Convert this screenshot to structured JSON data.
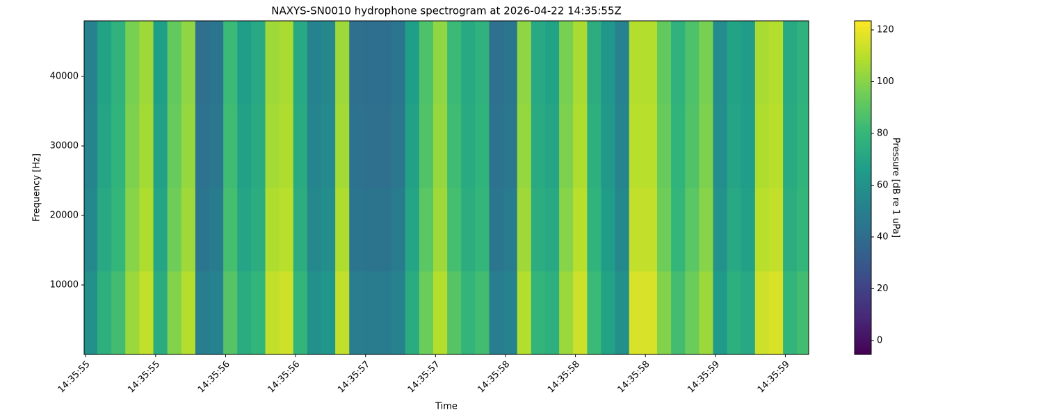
{
  "chart_data": {
    "type": "heatmap",
    "title": "NAXYS-SN0010 hydrophone spectrogram at 2026-04-22 14:35:55Z",
    "xlabel": "Time",
    "ylabel": "Frequency [Hz]",
    "colorbar_label": "Pressure [dB re 1 uPa]",
    "cmap": "viridis",
    "x": [
      55.33,
      55.42,
      55.51,
      55.6,
      55.69,
      55.78,
      55.87,
      55.96,
      56.05,
      56.14,
      56.23,
      56.32,
      56.41,
      56.5,
      56.59,
      56.68,
      56.77,
      56.86,
      56.95,
      57.04,
      57.13,
      57.22,
      57.31,
      57.4,
      57.49,
      57.58,
      57.67,
      57.76,
      57.85,
      57.94,
      58.03,
      58.12,
      58.21,
      58.3,
      58.39,
      58.48,
      58.57,
      58.66,
      58.75,
      58.84,
      58.93,
      59.02,
      59.11,
      59.2,
      59.29,
      59.38,
      59.47,
      59.56,
      59.65,
      59.74,
      59.83,
      59.92
    ],
    "y": [
      6000,
      18000,
      30000,
      42000
    ],
    "z": [
      [
        59,
        76,
        84,
        104,
        112,
        74,
        99,
        109,
        49,
        52,
        89,
        74,
        79,
        112,
        114,
        79,
        59,
        62,
        112,
        49,
        48,
        48,
        52,
        74,
        94,
        109,
        89,
        79,
        84,
        49,
        52,
        109,
        79,
        76,
        104,
        114,
        82,
        69,
        59,
        116,
        116,
        99,
        84,
        94,
        104,
        64,
        76,
        72,
        114,
        116,
        79,
        84
      ],
      [
        55,
        72,
        80,
        100,
        108,
        70,
        95,
        105,
        45,
        48,
        85,
        70,
        75,
        108,
        110,
        75,
        55,
        58,
        108,
        45,
        44,
        44,
        48,
        70,
        90,
        105,
        85,
        75,
        80,
        45,
        48,
        105,
        75,
        72,
        100,
        110,
        78,
        65,
        55,
        112,
        112,
        95,
        80,
        90,
        100,
        60,
        72,
        68,
        110,
        112,
        75,
        80
      ],
      [
        53,
        70,
        78,
        98,
        106,
        68,
        93,
        103,
        43,
        46,
        83,
        68,
        73,
        106,
        108,
        73,
        53,
        56,
        106,
        43,
        42,
        42,
        46,
        68,
        88,
        103,
        83,
        73,
        78,
        43,
        46,
        103,
        73,
        70,
        98,
        108,
        76,
        63,
        53,
        110,
        110,
        93,
        78,
        88,
        98,
        58,
        70,
        66,
        108,
        110,
        73,
        78
      ],
      [
        52,
        69,
        77,
        97,
        105,
        67,
        92,
        102,
        42,
        45,
        82,
        67,
        72,
        105,
        107,
        72,
        52,
        55,
        105,
        42,
        41,
        41,
        45,
        67,
        87,
        102,
        82,
        72,
        77,
        42,
        45,
        102,
        72,
        69,
        97,
        107,
        75,
        62,
        52,
        109,
        109,
        92,
        77,
        87,
        97,
        57,
        69,
        65,
        107,
        109,
        72,
        77
      ]
    ],
    "xlim": [
      55.29,
      59.95
    ],
    "xticks": [
      {
        "value": 55.3,
        "label": "14:35:55"
      },
      {
        "value": 55.75,
        "label": "14:35:55"
      },
      {
        "value": 56.2,
        "label": "14:35:56"
      },
      {
        "value": 56.65,
        "label": "14:35:56"
      },
      {
        "value": 57.1,
        "label": "14:35:57"
      },
      {
        "value": 57.55,
        "label": "14:35:57"
      },
      {
        "value": 58.0,
        "label": "14:35:58"
      },
      {
        "value": 58.45,
        "label": "14:35:58"
      },
      {
        "value": 58.9,
        "label": "14:35:58"
      },
      {
        "value": 59.35,
        "label": "14:35:59"
      },
      {
        "value": 59.8,
        "label": "14:35:59"
      }
    ],
    "ylim": [
      0,
      48000
    ],
    "yticks": [
      10000,
      20000,
      30000,
      40000
    ],
    "clim": [
      -5.4,
      123.5
    ],
    "cticks": [
      0,
      20,
      40,
      60,
      80,
      100,
      120
    ]
  }
}
